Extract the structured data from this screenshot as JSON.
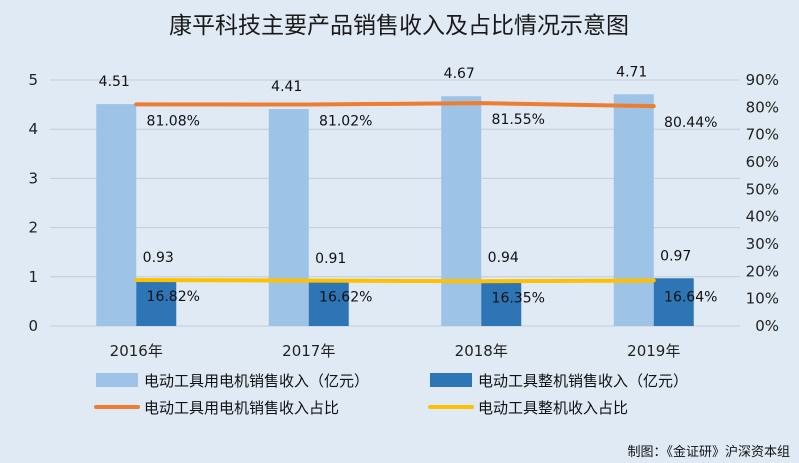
{
  "chart_data": {
    "type": "bar",
    "title": "康平科技主要产品销售收入及占比情况示意图",
    "categories": [
      "2016年",
      "2017年",
      "2018年",
      "2019年"
    ],
    "series": [
      {
        "name": "电动工具用电机销售收入（亿元）",
        "kind": "bar",
        "axis": "left",
        "values": [
          4.51,
          4.41,
          4.67,
          4.71
        ],
        "labels": [
          "4.51",
          "4.41",
          "4.67",
          "4.71"
        ],
        "color": "#9dc3e6"
      },
      {
        "name": "电动工具整机销售收入（亿元）",
        "kind": "bar",
        "axis": "left",
        "values": [
          0.93,
          0.91,
          0.94,
          0.97
        ],
        "labels": [
          "0.93",
          "0.91",
          "0.94",
          "0.97"
        ],
        "color": "#2e75b6"
      },
      {
        "name": "电动工具用电机销售收入占比",
        "kind": "line",
        "axis": "right",
        "values": [
          81.08,
          81.02,
          81.55,
          80.44
        ],
        "labels": [
          "81.08%",
          "81.02%",
          "81.55%",
          "80.44%"
        ],
        "color": "#ed7d31"
      },
      {
        "name": "电动工具整机收入占比",
        "kind": "line",
        "axis": "right",
        "values": [
          16.82,
          16.62,
          16.35,
          16.64
        ],
        "labels": [
          "16.82%",
          "16.62%",
          "16.35%",
          "16.64%"
        ],
        "color": "#ffc000"
      }
    ],
    "y_left": {
      "min": 0,
      "max": 5,
      "ticks": [
        "0",
        "1",
        "2",
        "3",
        "4",
        "5"
      ]
    },
    "y_right": {
      "min": 0,
      "max": 90,
      "ticks": [
        "0%",
        "10%",
        "20%",
        "30%",
        "40%",
        "50%",
        "60%",
        "70%",
        "80%",
        "90%"
      ]
    },
    "grid": true,
    "legend_position": "bottom"
  },
  "source_note": "制图：《金证研》沪深资本组",
  "colors": {
    "background": "#dfeaf5",
    "grid": "#c4ccd6"
  }
}
